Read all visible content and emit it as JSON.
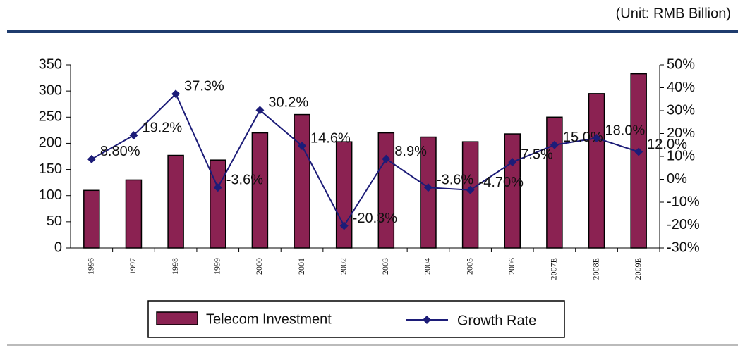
{
  "chart_data": {
    "type": "bar",
    "subtitle": "(Unit: RMB Billion)",
    "categories": [
      "1996",
      "1997",
      "1998",
      "1999",
      "2000",
      "2001",
      "2002",
      "2003",
      "2004",
      "2005",
      "2006",
      "2007E",
      "2008E",
      "2009E"
    ],
    "series": [
      {
        "name": "Telecom Investment",
        "type": "bar",
        "color": "#8b2252",
        "values": [
          110,
          130,
          177,
          168,
          220,
          255,
          203,
          220,
          212,
          203,
          218,
          250,
          295,
          333
        ]
      },
      {
        "name": "Growth Rate",
        "type": "line",
        "axis": "y2",
        "color": "#1c1c78",
        "values": [
          8.8,
          19.2,
          37.3,
          -3.6,
          30.2,
          14.6,
          -20.3,
          8.9,
          -3.6,
          -4.7,
          7.5,
          15.0,
          18.0,
          12.0
        ],
        "value_labels": [
          "8.80%",
          "19.2%",
          "37.3%",
          "-3.6%",
          "30.2%",
          "14.6%",
          "-20.3%",
          "8.9%",
          "-3.6%",
          "-4.70%",
          "7.5%",
          "15.0%",
          "18.0%",
          "12.0%"
        ]
      }
    ],
    "ylim": [
      0,
      350
    ],
    "yticks": [
      0,
      50,
      100,
      150,
      200,
      250,
      300,
      350
    ],
    "y2lim": [
      -30,
      50
    ],
    "y2ticks": [
      {
        "value": -30,
        "label": "-30%"
      },
      {
        "value": -20,
        "label": "-20%"
      },
      {
        "value": -10,
        "label": "-10%"
      },
      {
        "value": 0,
        "label": "0%"
      },
      {
        "value": 10,
        "label": "10%"
      },
      {
        "value": 20,
        "label": "20%"
      },
      {
        "value": 30,
        "label": "30%"
      },
      {
        "value": 40,
        "label": "40%"
      },
      {
        "value": 50,
        "label": "50%"
      }
    ],
    "legend": "bottom"
  }
}
